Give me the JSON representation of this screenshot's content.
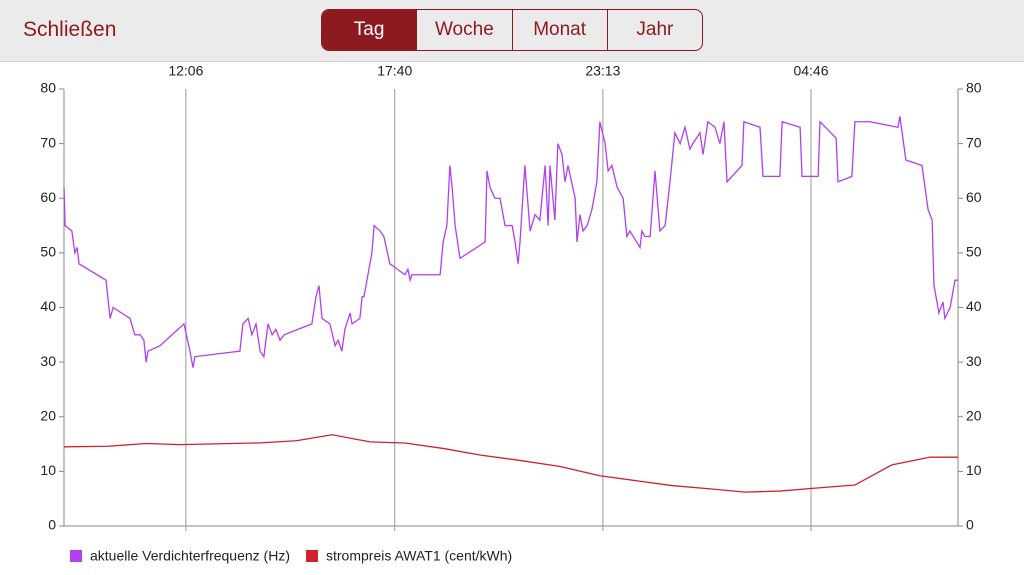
{
  "header": {
    "close": "Schließen",
    "segments": [
      "Tag",
      "Woche",
      "Monat",
      "Jahr"
    ],
    "selected_index": 0
  },
  "chart_data": {
    "type": "line",
    "series": [
      {
        "name": "aktuelle Verdichterfrequenz (Hz)",
        "color": "#b23ff2",
        "x": [
          8.85,
          8.88,
          9.06,
          9.14,
          9.2,
          9.25,
          9.97,
          10.08,
          10.16,
          10.61,
          10.74,
          10.88,
          10.98,
          11.04,
          11.09,
          11.41,
          12.05,
          12.21,
          12.29,
          12.34,
          13.54,
          13.62,
          13.76,
          13.86,
          13.97,
          14.08,
          14.18,
          14.29,
          14.4,
          14.5,
          14.61,
          14.72,
          15.46,
          15.57,
          15.65,
          15.73,
          15.94,
          16.08,
          16.16,
          16.26,
          16.34,
          16.48,
          16.53,
          16.74,
          16.8,
          16.85,
          17.06,
          17.12,
          17.28,
          17.38,
          17.54,
          17.94,
          18.02,
          18.08,
          18.13,
          18.88,
          18.96,
          19.06,
          19.14,
          19.2,
          19.28,
          19.41,
          20.08,
          20.13,
          20.21,
          20.34,
          20.48,
          20.61,
          20.8,
          20.88,
          20.96,
          21.01,
          21.14,
          21.28,
          21.41,
          21.54,
          21.68,
          21.76,
          21.81,
          21.94,
          22.02,
          22.13,
          22.21,
          22.29,
          22.48,
          22.53,
          22.61,
          22.69,
          22.8,
          22.93,
          23.06,
          23.14,
          23.28,
          23.36,
          23.46,
          23.6,
          23.76,
          23.86,
          23.94,
          24.21,
          24.26,
          24.34,
          24.48,
          24.61,
          24.74,
          24.88,
          25.01,
          25.14,
          25.28,
          25.41,
          25.54,
          25.62,
          25.81,
          25.89,
          26.02,
          26.21,
          26.34,
          26.45,
          26.53,
          26.93,
          26.98,
          27.41,
          27.49,
          27.94,
          28.0,
          28.48,
          28.53,
          28.96,
          29.01,
          29.44,
          29.49,
          29.86,
          29.94,
          30.34,
          31.09,
          31.14,
          31.3,
          31.73,
          31.89,
          32.0,
          32.05,
          32.13,
          32.18,
          32.29,
          32.34,
          32.48,
          32.61,
          32.69
        ],
        "values": [
          62,
          55,
          54,
          50,
          51,
          48,
          45,
          38,
          40,
          38,
          35,
          35,
          34,
          30,
          32,
          33,
          37,
          32,
          29,
          31,
          32,
          37,
          38,
          35,
          37,
          32,
          31,
          37,
          35,
          36,
          34,
          35,
          37,
          42,
          44,
          38,
          37,
          33,
          34,
          32,
          36,
          39,
          37,
          38,
          42,
          42,
          50,
          55,
          54,
          53,
          48,
          46,
          47,
          45,
          46,
          46,
          52,
          55,
          66,
          62,
          55,
          49,
          52,
          65,
          62,
          60,
          60,
          55,
          55,
          52,
          48,
          52,
          66,
          54,
          57,
          56,
          66,
          55,
          66,
          56,
          70,
          68,
          63,
          66,
          60,
          52,
          57,
          54,
          55,
          58,
          63,
          74,
          70,
          65,
          66,
          62,
          60,
          53,
          54,
          51,
          54,
          53,
          53,
          65,
          54,
          55,
          63,
          72,
          70,
          73,
          69,
          70,
          72,
          68,
          74,
          73,
          70,
          74,
          63,
          66,
          74,
          73,
          64,
          64,
          74,
          73,
          64,
          64,
          74,
          71,
          63,
          64,
          74,
          74,
          73,
          75,
          67,
          66,
          58,
          56,
          44,
          41,
          39,
          41,
          38,
          40,
          45,
          45
        ]
      },
      {
        "name": "strompreis AWAT1 (cent/kWh)",
        "color": "#d3202e",
        "x": [
          8.85,
          10.02,
          11.04,
          11.94,
          14.02,
          15.04,
          16.0,
          17.01,
          17.94,
          18.96,
          19.94,
          21.01,
          22.08,
          23.14,
          24.21,
          25.06,
          26.08,
          27.01,
          27.94,
          29.01,
          29.94,
          30.93,
          31.94,
          32.69
        ],
        "values": [
          14.5,
          14.6,
          15.1,
          14.9,
          15.2,
          15.6,
          16.7,
          15.4,
          15.2,
          14.2,
          13,
          12,
          10.9,
          9.2,
          8.2,
          7.4,
          6.8,
          6.2,
          6.4,
          7,
          7.5,
          11.2,
          12.6,
          12.6
        ]
      }
    ],
    "xlim": [
      8.85,
      32.69
    ],
    "xticks": [
      {
        "value": 12.1,
        "label": "12:06"
      },
      {
        "value": 17.67,
        "label": "17:40"
      },
      {
        "value": 23.22,
        "label": "23:13"
      },
      {
        "value": 28.77,
        "label": "04:46"
      }
    ],
    "ylim": [
      0,
      80
    ],
    "yticks": [
      0,
      10,
      20,
      30,
      40,
      50,
      60,
      70,
      80
    ],
    "y2lim": [
      0,
      80
    ],
    "y2ticks": [
      0,
      10,
      20,
      30,
      40,
      50,
      60,
      70,
      80
    ],
    "grid": "x",
    "legend": "bottom-left"
  }
}
